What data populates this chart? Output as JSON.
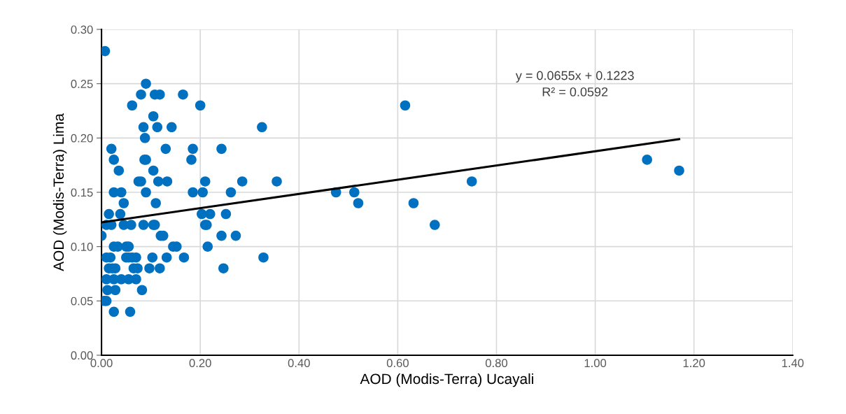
{
  "chart_data": {
    "type": "scatter",
    "xlabel": "AOD (Modis-Terra) Ucayali",
    "ylabel": "AOD (Modis-Terra) Lima",
    "xlim": [
      0,
      1.4
    ],
    "xticks": [
      {
        "value": 0,
        "label": "0.00"
      },
      {
        "value": 0.2,
        "label": "0.20"
      },
      {
        "value": 0.4,
        "label": "0.40"
      },
      {
        "value": 0.6,
        "label": "0.60"
      },
      {
        "value": 0.8,
        "label": "0.80"
      },
      {
        "value": 1.0,
        "label": "1.00"
      },
      {
        "value": 1.2,
        "label": "1.20"
      },
      {
        "value": 1.4,
        "label": "1.40"
      }
    ],
    "ylim": [
      0,
      0.3
    ],
    "yticks": [
      {
        "value": 0,
        "label": "0.00"
      },
      {
        "value": 0.05,
        "label": "0.05"
      },
      {
        "value": 0.1,
        "label": "0.10"
      },
      {
        "value": 0.15,
        "label": "0.15"
      },
      {
        "value": 0.2,
        "label": "0.20"
      },
      {
        "value": 0.25,
        "label": "0.25"
      },
      {
        "value": 0.3,
        "label": "0.30"
      }
    ],
    "grid": true,
    "annotations": [
      "y = 0.0655x + 0.1223\nR² = 0.0592"
    ],
    "series": [
      {
        "color": "#0070c0",
        "marker": "circle",
        "x": [
          0.007,
          0.09,
          0.08,
          0.108,
          0.118,
          0.165,
          0.062,
          0.2,
          0.615,
          0.105,
          0.085,
          0.113,
          0.142,
          0.325,
          0.088,
          0.02,
          0.13,
          0.185,
          0.243,
          0.025,
          0.087,
          0.09,
          0.182,
          1.105,
          0.035,
          0.105,
          1.17,
          0.075,
          0.08,
          0.115,
          0.133,
          0.21,
          0.285,
          0.355,
          0.75,
          0.025,
          0.04,
          0.09,
          0.185,
          0.205,
          0.262,
          0.475,
          0.512,
          0.045,
          0.11,
          0.52,
          0.632,
          0.015,
          0.038,
          0.203,
          0.22,
          0.252,
          0.01,
          0.02,
          0.045,
          0.06,
          0.085,
          0.105,
          0.108,
          0.21,
          0.213,
          0.675,
          0.0,
          0.12,
          0.125,
          0.243,
          0.272,
          0.025,
          0.033,
          0.05,
          0.055,
          0.145,
          0.152,
          0.215,
          0.01,
          0.018,
          0.05,
          0.055,
          0.062,
          0.07,
          0.103,
          0.132,
          0.167,
          0.328,
          0.015,
          0.022,
          0.028,
          0.065,
          0.073,
          0.097,
          0.118,
          0.247,
          0.01,
          0.025,
          0.04,
          0.055,
          0.07,
          0.012,
          0.028,
          0.082,
          0.006,
          0.01,
          0.025,
          0.058
        ],
        "values": [
          0.28,
          0.25,
          0.24,
          0.24,
          0.24,
          0.24,
          0.23,
          0.23,
          0.23,
          0.22,
          0.21,
          0.21,
          0.21,
          0.21,
          0.2,
          0.19,
          0.19,
          0.19,
          0.19,
          0.18,
          0.18,
          0.18,
          0.18,
          0.18,
          0.17,
          0.17,
          0.17,
          0.16,
          0.16,
          0.16,
          0.16,
          0.16,
          0.16,
          0.16,
          0.16,
          0.15,
          0.15,
          0.15,
          0.15,
          0.15,
          0.15,
          0.15,
          0.15,
          0.14,
          0.14,
          0.14,
          0.14,
          0.13,
          0.13,
          0.13,
          0.13,
          0.13,
          0.12,
          0.12,
          0.12,
          0.12,
          0.12,
          0.12,
          0.12,
          0.12,
          0.12,
          0.12,
          0.11,
          0.11,
          0.11,
          0.11,
          0.11,
          0.1,
          0.1,
          0.1,
          0.1,
          0.1,
          0.1,
          0.1,
          0.09,
          0.09,
          0.09,
          0.09,
          0.09,
          0.09,
          0.09,
          0.09,
          0.09,
          0.09,
          0.08,
          0.08,
          0.08,
          0.08,
          0.08,
          0.08,
          0.08,
          0.08,
          0.07,
          0.07,
          0.07,
          0.07,
          0.07,
          0.06,
          0.06,
          0.06,
          0.05,
          0.05,
          0.04,
          0.04
        ]
      },
      {
        "type": "line",
        "marker": "none",
        "color": "#000000",
        "x": [
          0.0,
          1.17
        ],
        "values": [
          0.1223,
          0.1989
        ]
      }
    ]
  }
}
